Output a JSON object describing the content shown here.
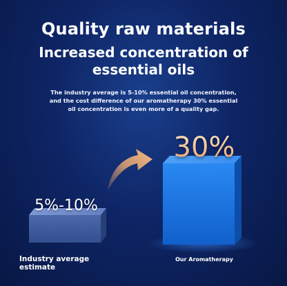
{
  "header": {
    "title": "Quality raw materials",
    "subtitle": "Increased concentration of essential oils",
    "description": "The industry average is 5-10% essential oil concentration, and the cost difference of our aromatherapy 30% essential oil concentration is even more of a quality gap."
  },
  "comparison": {
    "left": {
      "value_text": "5%-10%",
      "label": "Industry average estimate"
    },
    "right": {
      "value_text": "30%",
      "label": "Our Aromatherapy"
    }
  },
  "colors": {
    "background": "#0e2565",
    "bar_left": "#5a76b8",
    "bar_right": "#1f7be8",
    "arrow": "#f0a46a"
  }
}
